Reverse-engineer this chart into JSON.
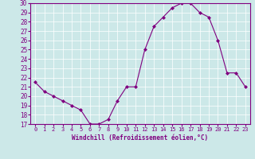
{
  "x": [
    0,
    1,
    2,
    3,
    4,
    5,
    6,
    7,
    8,
    9,
    10,
    11,
    12,
    13,
    14,
    15,
    16,
    17,
    18,
    19,
    20,
    21,
    22,
    23
  ],
  "y": [
    21.5,
    20.5,
    20.0,
    19.5,
    19.0,
    18.5,
    17.0,
    17.0,
    17.5,
    19.5,
    21.0,
    21.0,
    25.0,
    27.5,
    28.5,
    29.5,
    30.0,
    30.0,
    29.0,
    28.5,
    26.0,
    22.5,
    22.5,
    21.0
  ],
  "xlabel": "Windchill (Refroidissement éolien,°C)",
  "ylim": [
    17,
    30
  ],
  "xlim_min": -0.5,
  "xlim_max": 23.5,
  "yticks": [
    17,
    18,
    19,
    20,
    21,
    22,
    23,
    24,
    25,
    26,
    27,
    28,
    29,
    30
  ],
  "xticks": [
    0,
    1,
    2,
    3,
    4,
    5,
    6,
    7,
    8,
    9,
    10,
    11,
    12,
    13,
    14,
    15,
    16,
    17,
    18,
    19,
    20,
    21,
    22,
    23
  ],
  "line_color": "#800080",
  "marker": "D",
  "marker_size": 2.0,
  "bg_color": "#cce8e8",
  "grid_color": "#b0d0d0",
  "label_color": "#800080",
  "tick_color": "#800080",
  "spine_color": "#800080",
  "xlabel_fontsize": 5.5,
  "ytick_fontsize": 5.5,
  "xtick_fontsize": 5.0
}
